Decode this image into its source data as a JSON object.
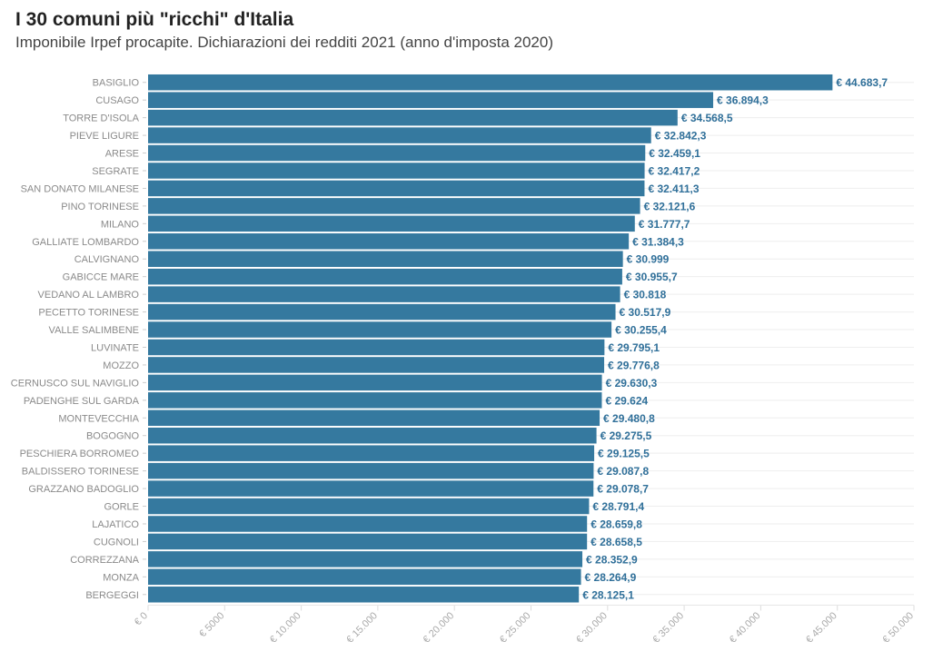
{
  "chart_data": {
    "type": "bar",
    "orientation": "horizontal",
    "title": "I 30 comuni più \"ricchi\" d'Italia",
    "subtitle": "Imponibile Irpef procapite. Dichiarazioni dei redditi 2021 (anno d'imposta 2020)",
    "categories": [
      "BASIGLIO",
      "CUSAGO",
      "TORRE D'ISOLA",
      "PIEVE LIGURE",
      "ARESE",
      "SEGRATE",
      "SAN DONATO MILANESE",
      "PINO TORINESE",
      "MILANO",
      "GALLIATE LOMBARDO",
      "CALVIGNANO",
      "GABICCE MARE",
      "VEDANO AL LAMBRO",
      "PECETTO TORINESE",
      "VALLE SALIMBENE",
      "LUVINATE",
      "MOZZO",
      "CERNUSCO SUL NAVIGLIO",
      "PADENGHE SUL GARDA",
      "MONTEVECCHIA",
      "BOGOGNO",
      "PESCHIERA BORROMEO",
      "BALDISSERO TORINESE",
      "GRAZZANO BADOGLIO",
      "GORLE",
      "LAJATICO",
      "CUGNOLI",
      "CORREZZANA",
      "MONZA",
      "BERGEGGI"
    ],
    "values": [
      44683.7,
      36894.3,
      34568.5,
      32842.3,
      32459.1,
      32417.2,
      32411.3,
      32121.6,
      31777.7,
      31384.3,
      30999,
      30955.7,
      30818,
      30517.9,
      30255.4,
      29795.1,
      29776.8,
      29630.3,
      29624,
      29480.8,
      29275.5,
      29125.5,
      29087.8,
      29078.7,
      28791.4,
      28659.8,
      28658.5,
      28352.9,
      28264.9,
      28125.1
    ],
    "value_labels": [
      "€ 44.683,7",
      "€ 36.894,3",
      "€ 34.568,5",
      "€ 32.842,3",
      "€ 32.459,1",
      "€ 32.417,2",
      "€ 32.411,3",
      "€ 32.121,6",
      "€ 31.777,7",
      "€ 31.384,3",
      "€ 30.999",
      "€ 30.955,7",
      "€ 30.818",
      "€ 30.517,9",
      "€ 30.255,4",
      "€ 29.795,1",
      "€ 29.776,8",
      "€ 29.630,3",
      "€ 29.624",
      "€ 29.480,8",
      "€ 29.275,5",
      "€ 29.125,5",
      "€ 29.087,8",
      "€ 29.078,7",
      "€ 28.791,4",
      "€ 28.659,8",
      "€ 28.658,5",
      "€ 28.352,9",
      "€ 28.264,9",
      "€ 28.125,1"
    ],
    "xlim": [
      0,
      50000
    ],
    "x_ticks": [
      0,
      5000,
      10000,
      15000,
      20000,
      25000,
      30000,
      35000,
      40000,
      45000,
      50000
    ],
    "x_tick_labels": [
      "€ 0",
      "€ 5000",
      "€ 10.000",
      "€ 15.000",
      "€ 20.000",
      "€ 25.000",
      "€ 30.000",
      "€ 35.000",
      "€ 40.000",
      "€ 45.000",
      "€ 50.000"
    ],
    "grid": true,
    "bar_color": "#35799f",
    "label_color": "#2f6f99"
  }
}
